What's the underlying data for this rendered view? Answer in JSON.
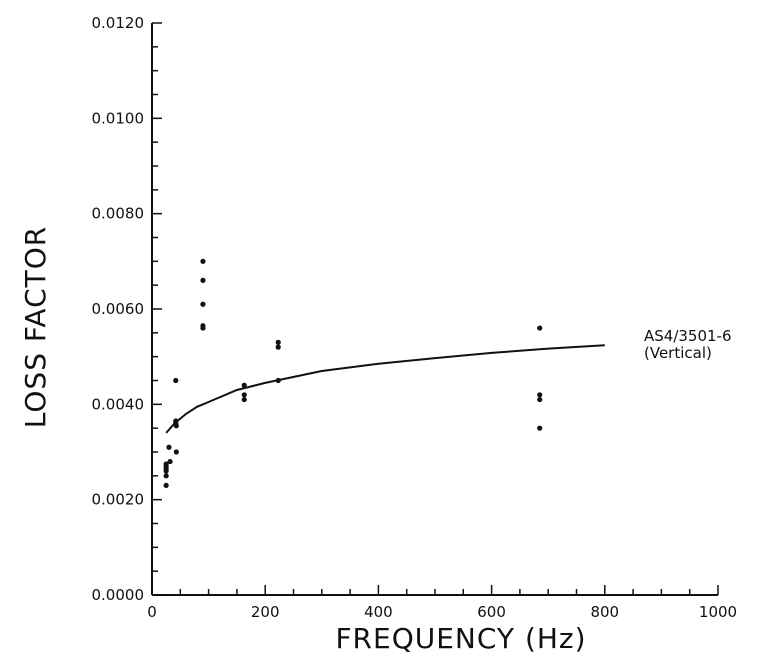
{
  "chart_data": {
    "type": "scatter",
    "title": "",
    "xlabel": "FREQUENCY (Hz)",
    "ylabel": "LOSS FACTOR",
    "xlim": [
      0,
      1000
    ],
    "ylim": [
      0,
      0.012
    ],
    "x_ticks": [
      "0",
      "200",
      "400",
      "600",
      "800",
      "1000"
    ],
    "y_ticks": [
      "0.0000",
      "0.0020",
      "0.0040",
      "0.0060",
      "0.0080",
      "0.0100",
      "0.0120"
    ],
    "grid": false,
    "series": [
      {
        "kind": "points",
        "x": [
          25,
          25,
          25,
          25,
          25,
          25,
          30,
          32,
          42,
          42,
          42,
          43,
          43,
          90,
          90,
          90,
          90,
          90,
          163,
          163,
          163,
          223,
          223,
          223,
          685,
          685,
          685,
          685
        ],
        "y": [
          0.0023,
          0.0025,
          0.0026,
          0.00265,
          0.0027,
          0.00275,
          0.0031,
          0.0028,
          0.0045,
          0.00365,
          0.0036,
          0.00355,
          0.003,
          0.007,
          0.0066,
          0.0061,
          0.00565,
          0.0056,
          0.0044,
          0.0042,
          0.0041,
          0.0053,
          0.0052,
          0.0045,
          0.0056,
          0.0042,
          0.0041,
          0.0035
        ]
      },
      {
        "kind": "curve",
        "name": "AS4/3501-6 (Vertical)",
        "x": [
          25,
          40,
          60,
          80,
          100,
          150,
          200,
          300,
          400,
          500,
          600,
          700,
          800
        ],
        "y": [
          0.0034,
          0.0036,
          0.0038,
          0.00395,
          0.00405,
          0.0043,
          0.00445,
          0.0047,
          0.00485,
          0.00497,
          0.00508,
          0.00517,
          0.00524
        ]
      }
    ],
    "annotations": [
      "AS4/3501-6",
      "(Vertical)"
    ]
  }
}
